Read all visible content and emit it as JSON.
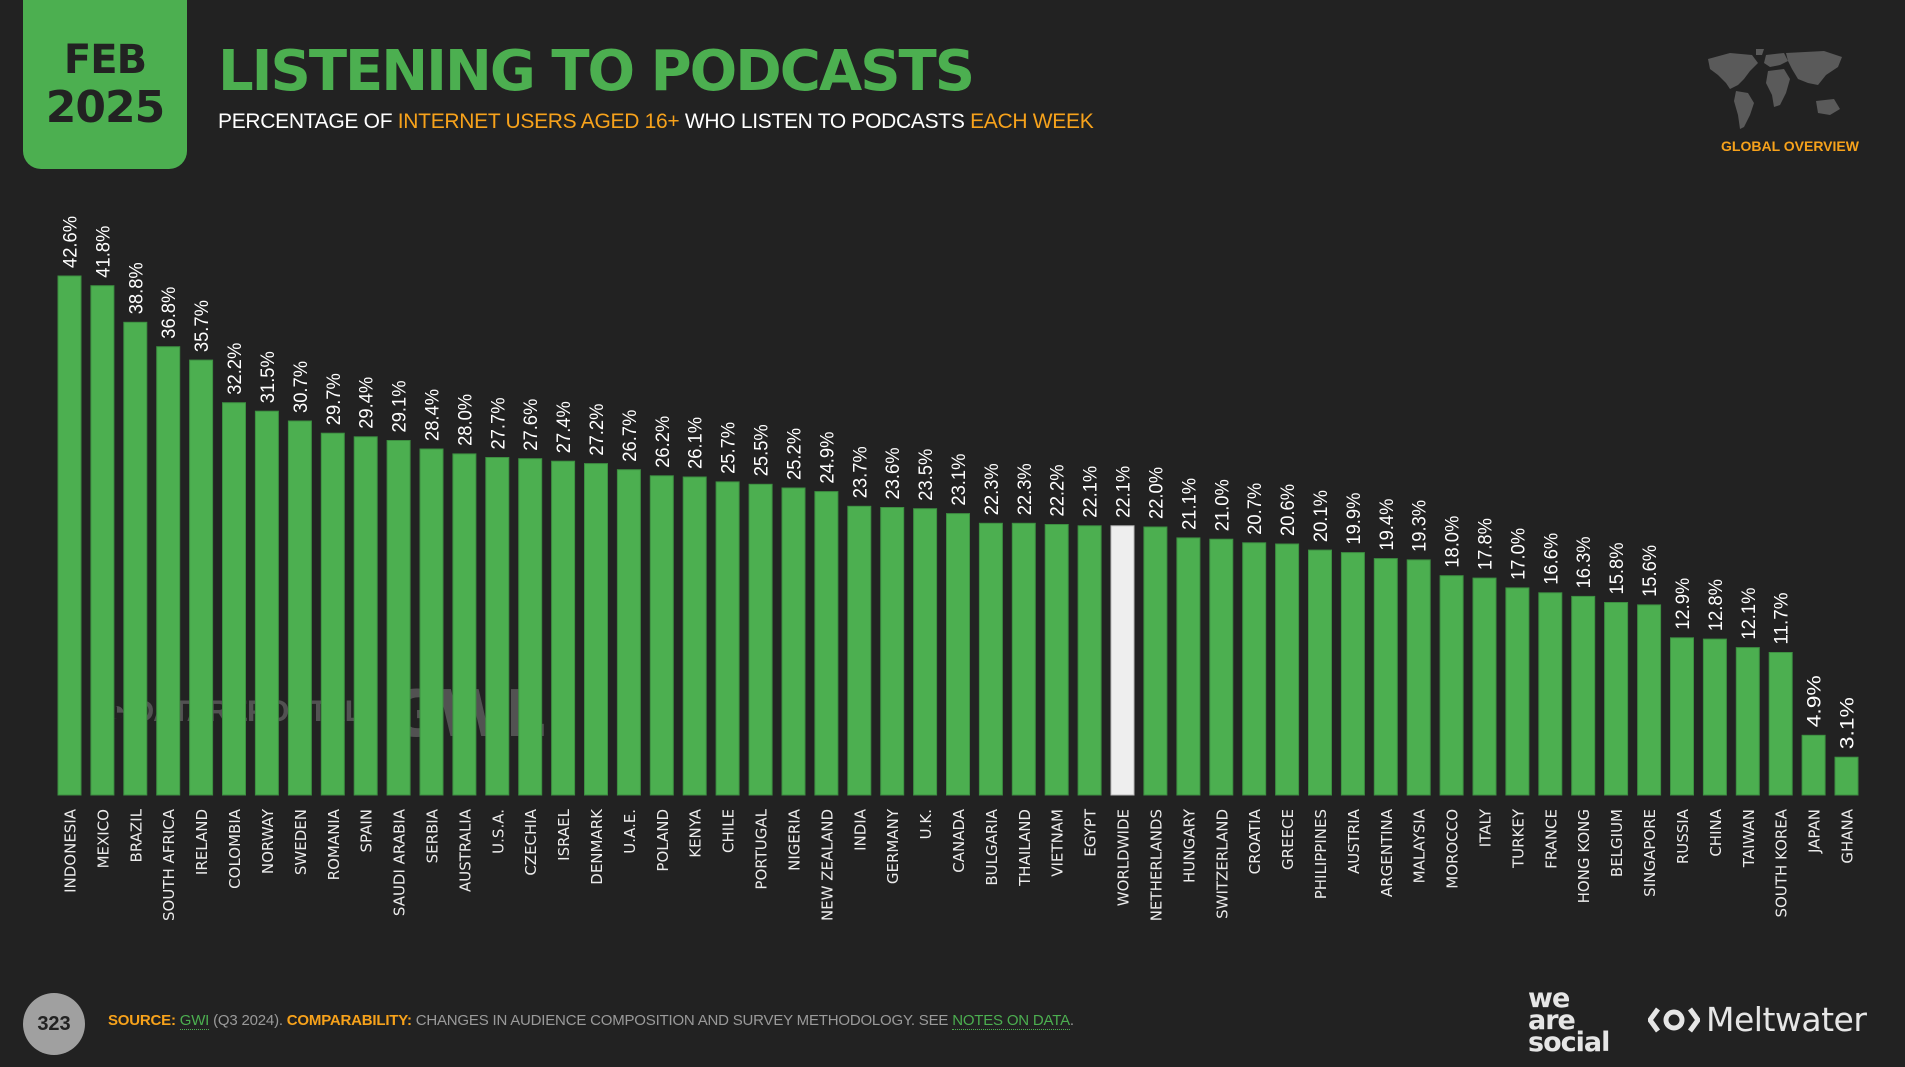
{
  "header": {
    "badge_month": "FEB",
    "badge_year": "2025",
    "title": "LISTENING TO PODCASTS",
    "subtitle_parts": [
      "PERCENTAGE OF ",
      "INTERNET USERS AGED 16+",
      " WHO LISTEN TO PODCASTS ",
      "EACH WEEK"
    ],
    "section_label": "GLOBAL OVERVIEW"
  },
  "watermarks": {
    "datareportal": "DATAREPORTAL",
    "gwi": "GWI."
  },
  "footer": {
    "page_number": "323",
    "source_label": "SOURCE:",
    "source_link": "GWI",
    "source_period": " (Q3 2024). ",
    "comparability_label": "COMPARABILITY:",
    "comparability_text": " CHANGES IN AUDIENCE COMPOSITION AND SURVEY METHODOLOGY. SEE ",
    "notes_link": "NOTES ON DATA",
    "end_punct": "."
  },
  "logos": {
    "we_are_social": [
      "we",
      "are",
      "social"
    ],
    "meltwater": "Meltwater"
  },
  "colors": {
    "bar": "#4caf50",
    "highlight_bar": "#eeeeee",
    "accent": "#f7a21b",
    "background": "#222222"
  },
  "chart_data": {
    "type": "bar",
    "title": "LISTENING TO PODCASTS",
    "subtitle": "PERCENTAGE OF INTERNET USERS AGED 16+ WHO LISTEN TO PODCASTS EACH WEEK",
    "xlabel": "",
    "ylabel": "",
    "unit": "%",
    "ylim": [
      0,
      42.6
    ],
    "grid": false,
    "highlight_category": "WORLDWIDE",
    "categories": [
      "INDONESIA",
      "MEXICO",
      "BRAZIL",
      "SOUTH AFRICA",
      "IRELAND",
      "COLOMBIA",
      "NORWAY",
      "SWEDEN",
      "ROMANIA",
      "SPAIN",
      "SAUDI ARABIA",
      "SERBIA",
      "AUSTRALIA",
      "U.S.A.",
      "CZECHIA",
      "ISRAEL",
      "DENMARK",
      "U.A.E.",
      "POLAND",
      "KENYA",
      "CHILE",
      "PORTUGAL",
      "NIGERIA",
      "NEW ZEALAND",
      "INDIA",
      "GERMANY",
      "U.K.",
      "CANADA",
      "BULGARIA",
      "THAILAND",
      "VIETNAM",
      "EGYPT",
      "WORLDWIDE",
      "NETHERLANDS",
      "HUNGARY",
      "SWITZERLAND",
      "CROATIA",
      "GREECE",
      "PHILIPPINES",
      "AUSTRIA",
      "ARGENTINA",
      "MALAYSIA",
      "MOROCCO",
      "ITALY",
      "TURKEY",
      "FRANCE",
      "HONG KONG",
      "BELGIUM",
      "SINGAPORE",
      "RUSSIA",
      "CHINA",
      "TAIWAN",
      "SOUTH KOREA",
      "JAPAN",
      "GHANA"
    ],
    "values": [
      42.6,
      41.8,
      38.8,
      36.8,
      35.7,
      32.2,
      31.5,
      30.7,
      29.7,
      29.4,
      29.1,
      28.4,
      28.0,
      27.7,
      27.6,
      27.4,
      27.2,
      26.7,
      26.2,
      26.1,
      25.7,
      25.5,
      25.2,
      24.9,
      23.7,
      23.6,
      23.5,
      23.1,
      22.3,
      22.3,
      22.2,
      22.1,
      22.1,
      22.0,
      21.1,
      21.0,
      20.7,
      20.6,
      20.1,
      19.9,
      19.4,
      19.3,
      18.0,
      17.8,
      17.0,
      16.6,
      16.3,
      15.8,
      15.6,
      12.9,
      12.8,
      12.1,
      11.7,
      4.9,
      3.1
    ],
    "data_labels": [
      "42.6%",
      "41.8%",
      "38.8%",
      "36.8%",
      "35.7%",
      "32.2%",
      "31.5%",
      "30.7%",
      "29.7%",
      "29.4%",
      "29.1%",
      "28.4%",
      "28.0%",
      "27.7%",
      "27.6%",
      "27.4%",
      "27.2%",
      "26.7%",
      "26.2%",
      "26.1%",
      "25.7%",
      "25.5%",
      "25.2%",
      "24.9%",
      "23.7%",
      "23.6%",
      "23.5%",
      "23.1%",
      "22.3%",
      "22.3%",
      "22.2%",
      "22.1%",
      "22.1%",
      "22.0%",
      "21.1%",
      "21.0%",
      "20.7%",
      "20.6%",
      "20.1%",
      "19.9%",
      "19.4%",
      "19.3%",
      "18.0%",
      "17.8%",
      "17.0%",
      "16.6%",
      "16.3%",
      "15.8%",
      "15.6%",
      "12.9%",
      "12.8%",
      "12.1%",
      "11.7%",
      "4.9%",
      "3.1%"
    ]
  }
}
